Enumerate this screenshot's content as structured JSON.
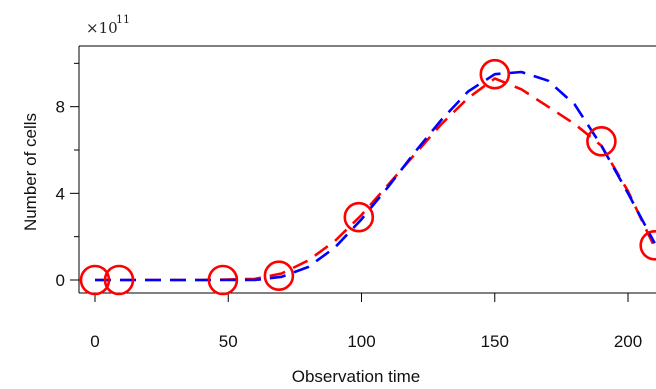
{
  "chart_data": {
    "type": "line",
    "title": "",
    "xlabel": "Observation time",
    "ylabel": "Number of cells",
    "y_multiplier": {
      "base": "×10",
      "exponent": "11"
    },
    "xlim": [
      -6,
      212
    ],
    "ylim": [
      -0.6,
      10.8
    ],
    "x_ticks": [
      0,
      50,
      100,
      150,
      200
    ],
    "x_tick_labels": [
      "0",
      "50",
      "100",
      "150",
      "200"
    ],
    "y_major_ticks": [
      0,
      4,
      8
    ],
    "y_major_tick_labels": [
      "0",
      "4",
      "8"
    ],
    "y_minor_ticks": [
      2,
      6,
      10
    ],
    "grid": false,
    "series": [
      {
        "kind": "observed",
        "marker": "circle",
        "color": "#ff0000",
        "x": [
          0,
          9,
          48,
          69,
          99,
          150,
          190,
          210
        ],
        "y": [
          0.0,
          0.0,
          0.0,
          0.2,
          2.9,
          9.5,
          6.4,
          1.6
        ]
      },
      {
        "kind": "fit-red",
        "style": "dashed",
        "color": "#ff0000",
        "x": [
          0,
          20,
          40,
          60,
          70,
          80,
          90,
          100,
          110,
          120,
          130,
          140,
          150,
          160,
          170,
          180,
          190,
          200,
          210
        ],
        "y": [
          0.0,
          0.0,
          0.0,
          0.05,
          0.3,
          0.9,
          1.8,
          3.0,
          4.4,
          5.8,
          7.2,
          8.4,
          9.3,
          8.8,
          8.0,
          7.2,
          6.2,
          4.1,
          1.5
        ]
      },
      {
        "kind": "fit-blue",
        "style": "dashed",
        "color": "#0000ff",
        "x": [
          0,
          20,
          40,
          60,
          70,
          80,
          90,
          100,
          110,
          120,
          130,
          140,
          150,
          160,
          170,
          180,
          190,
          200,
          210
        ],
        "y": [
          0.0,
          0.0,
          0.0,
          0.0,
          0.15,
          0.6,
          1.5,
          2.8,
          4.3,
          5.9,
          7.4,
          8.7,
          9.5,
          9.6,
          9.2,
          8.1,
          6.2,
          4.0,
          1.7
        ]
      }
    ]
  }
}
